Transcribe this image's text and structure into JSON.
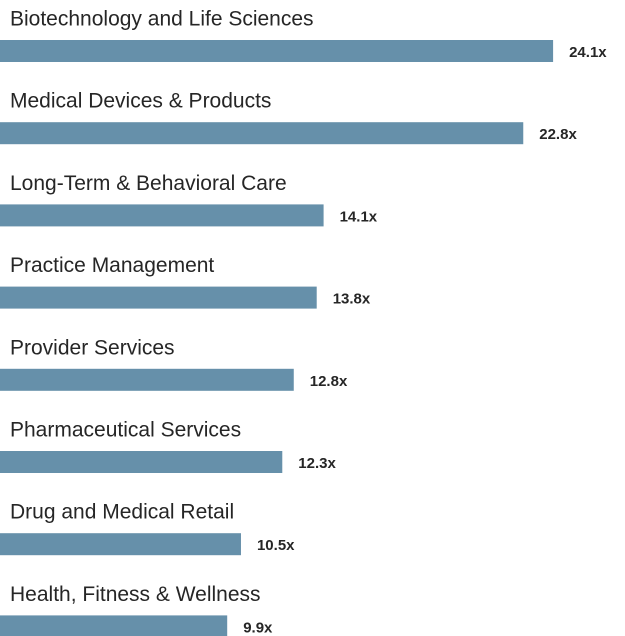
{
  "chart_data": {
    "type": "bar",
    "orientation": "horizontal",
    "categories": [
      "Biotechnology and Life Sciences",
      "Medical Devices & Products",
      "Long-Term & Behavioral Care",
      "Practice Management",
      "Provider Services",
      "Pharmaceutical Services",
      "Drug and Medical Retail",
      "Health, Fitness & Wellness"
    ],
    "values": [
      24.1,
      22.8,
      14.1,
      13.8,
      12.8,
      12.3,
      10.5,
      9.9
    ],
    "value_labels": [
      "24.1x",
      "22.8x",
      "14.1x",
      "13.8x",
      "12.8x",
      "12.3x",
      "10.5x",
      "9.9x"
    ],
    "color": "#6690aa"
  }
}
